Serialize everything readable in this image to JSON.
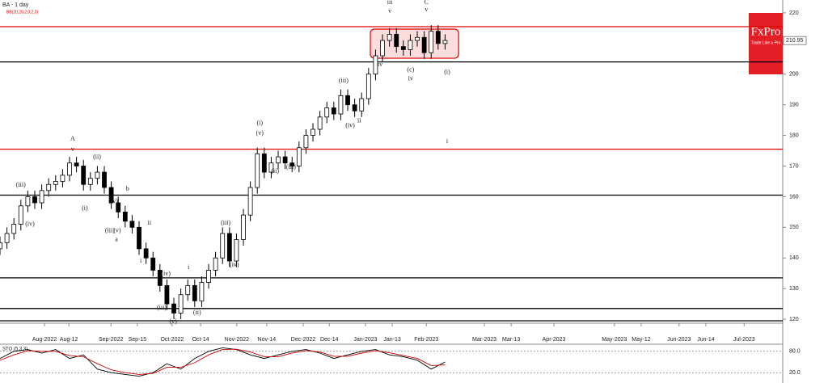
{
  "chart_data": {
    "type": "candlestick",
    "title": "BA - 1 day",
    "indicator": "BB(20,20,2,0,2,0)",
    "oscillator": "STO (5,3,3)",
    "brand": "FxPro",
    "tagline": "Trade Like a Pro",
    "last_price": 210.95,
    "x": [
      0,
      2,
      4,
      6,
      8,
      10,
      12,
      14,
      16,
      18,
      20,
      22,
      24,
      26,
      28,
      30,
      32,
      34,
      36,
      38,
      40,
      42,
      44,
      46,
      48,
      50,
      52,
      54,
      56,
      58,
      60,
      62,
      64,
      66,
      68,
      70,
      72,
      74,
      76,
      78,
      80,
      82,
      84,
      86,
      88,
      90,
      92,
      94,
      96,
      98,
      100,
      102,
      104,
      106,
      108,
      110,
      112,
      114,
      116,
      118,
      120,
      122,
      124,
      126,
      128
    ],
    "open": [
      143,
      145,
      148,
      151,
      157,
      160,
      158,
      162,
      164,
      165,
      167,
      171,
      170,
      164,
      166,
      168,
      163,
      158,
      155,
      152,
      150,
      143,
      140,
      136,
      131,
      125,
      122,
      128,
      131,
      126,
      132,
      136,
      140,
      148,
      139,
      146,
      154,
      163,
      174,
      168,
      171,
      173,
      171,
      170,
      176,
      180,
      182,
      186,
      189,
      187,
      193,
      190,
      188,
      192,
      200,
      206,
      211,
      213,
      209,
      208,
      211,
      212,
      207,
      214,
      210
    ],
    "high": [
      147,
      150,
      153,
      159,
      162,
      162,
      164,
      166,
      167,
      169,
      173,
      173,
      172,
      168,
      170,
      170,
      165,
      160,
      157,
      154,
      152,
      145,
      142,
      138,
      133,
      127,
      130,
      133,
      133,
      134,
      138,
      142,
      150,
      150,
      148,
      156,
      165,
      176,
      176,
      173,
      175,
      175,
      173,
      178,
      182,
      184,
      188,
      191,
      191,
      195,
      195,
      192,
      194,
      202,
      208,
      213,
      215,
      215,
      211,
      213,
      214,
      214,
      216,
      216,
      213
    ],
    "low": [
      141,
      143,
      146,
      149,
      155,
      156,
      156,
      160,
      162,
      163,
      165,
      168,
      162,
      162,
      164,
      161,
      156,
      153,
      150,
      148,
      141,
      138,
      134,
      129,
      123,
      120,
      120,
      126,
      124,
      124,
      130,
      134,
      138,
      137,
      137,
      144,
      152,
      161,
      166,
      166,
      169,
      169,
      168,
      168,
      174,
      178,
      180,
      184,
      185,
      185,
      188,
      186,
      186,
      190,
      198,
      204,
      209,
      207,
      206,
      206,
      209,
      205,
      205,
      208,
      208
    ],
    "close": [
      145,
      148,
      151,
      157,
      160,
      158,
      162,
      164,
      165,
      167,
      171,
      170,
      164,
      166,
      168,
      163,
      158,
      155,
      152,
      150,
      143,
      140,
      136,
      131,
      125,
      122,
      128,
      131,
      126,
      132,
      136,
      140,
      148,
      139,
      146,
      154,
      163,
      174,
      168,
      171,
      173,
      171,
      170,
      176,
      180,
      182,
      186,
      189,
      187,
      193,
      190,
      188,
      192,
      200,
      206,
      211,
      213,
      209,
      208,
      211,
      212,
      207,
      214,
      210,
      211
    ],
    "xlim": [
      0,
      225.1
    ],
    "ylim": [
      118.7,
      224.2
    ],
    "yticks": [
      120,
      130,
      140,
      150,
      160,
      170,
      180,
      190,
      200,
      210,
      220
    ],
    "xticks": [
      {
        "value": 12.8,
        "label": "Aug-2022"
      },
      {
        "value": 19.8,
        "label": "Aug-12"
      },
      {
        "value": 31.9,
        "label": "Sep-2022"
      },
      {
        "value": 39.5,
        "label": "Sep-15"
      },
      {
        "value": 49.5,
        "label": "Oct-2022"
      },
      {
        "value": 57.7,
        "label": "Oct-14"
      },
      {
        "value": 68.1,
        "label": "Nov-2022"
      },
      {
        "value": 76.7,
        "label": "Nov-14"
      },
      {
        "value": 87.2,
        "label": "Dec-2022"
      },
      {
        "value": 94.7,
        "label": "Dec-14"
      },
      {
        "value": 105.1,
        "label": "Jan-2023"
      },
      {
        "value": 112.8,
        "label": "Jan-13"
      },
      {
        "value": 122.6,
        "label": "Feb-2023"
      },
      {
        "value": 139.3,
        "label": "Mar-2023"
      },
      {
        "value": 147,
        "label": "Mar-13"
      },
      {
        "value": 159.3,
        "label": "Apr-2023"
      },
      {
        "value": 176.7,
        "label": "May-2023"
      },
      {
        "value": 184.4,
        "label": "May-12"
      },
      {
        "value": 195.3,
        "label": "Jun-2023"
      },
      {
        "value": 203,
        "label": "Jun-14"
      },
      {
        "value": 214,
        "label": "Jul-2023"
      }
    ],
    "levels": [
      {
        "value": 215.5,
        "color": "#e00000"
      },
      {
        "value": 204,
        "color": "#000000"
      },
      {
        "value": 175.5,
        "color": "#e00000"
      },
      {
        "value": 160.5,
        "color": "#000000"
      },
      {
        "value": 133.5,
        "color": "#000000"
      },
      {
        "value": 123.5,
        "color": "#000000"
      },
      {
        "value": 119.5,
        "color": "#000000"
      }
    ],
    "box": {
      "x": [
        106.5,
        131.9
      ],
      "y": [
        205.2,
        214.7
      ]
    },
    "annotations": [
      {
        "text": "A",
        "x": 20.9,
        "y": 178.8
      },
      {
        "text": "v",
        "x": 20.9,
        "y": 175.4
      },
      {
        "text": "C",
        "x": 122.6,
        "y": 223.4
      },
      {
        "text": "v",
        "x": 122.6,
        "y": 221
      },
      {
        "text": "iii",
        "x": 112.1,
        "y": 223.4
      },
      {
        "text": "v",
        "x": 112.1,
        "y": 220.5
      },
      {
        "text": "(c)",
        "x": 118.1,
        "y": 201.3
      },
      {
        "text": "iv",
        "x": 118.1,
        "y": 198.4
      },
      {
        "text": "iv",
        "x": 109.3,
        "y": 203.1
      },
      {
        "text": "(i)",
        "x": 128.6,
        "y": 200.5
      },
      {
        "text": "i",
        "x": 128.6,
        "y": 178
      },
      {
        "text": "(iii)",
        "x": 98.8,
        "y": 197.8
      },
      {
        "text": "(iv)",
        "x": 100.7,
        "y": 183.1
      },
      {
        "text": "ii",
        "x": 103.3,
        "y": 184.7
      },
      {
        "text": "(i)",
        "x": 74.7,
        "y": 183.9
      },
      {
        "text": "(v)",
        "x": 74.7,
        "y": 180.7
      },
      {
        "text": "(ii)",
        "x": 79.1,
        "y": 168.3
      },
      {
        "text": "(iii)",
        "x": 83.7,
        "y": 169.6
      },
      {
        "text": "(iii)",
        "x": 64.9,
        "y": 151.4
      },
      {
        "text": "(iv)",
        "x": 67.4,
        "y": 137.7
      },
      {
        "text": "i",
        "x": 54.2,
        "y": 136.9
      },
      {
        "text": "(ii)",
        "x": 56.7,
        "y": 122.1
      },
      {
        "text": "(iv)",
        "x": 47.7,
        "y": 134.8
      },
      {
        "text": "(iii)",
        "x": 46.5,
        "y": 123.7
      },
      {
        "text": "(v)",
        "x": 49.8,
        "y": 119.2
      },
      {
        "text": "(ii)",
        "x": 27.9,
        "y": 172.8
      },
      {
        "text": "(i)",
        "x": 24.4,
        "y": 156.1
      },
      {
        "text": "(iv)",
        "x": 32.6,
        "y": 158.5
      },
      {
        "text": "b",
        "x": 36.7,
        "y": 162.5
      },
      {
        "text": "(iii)",
        "x": 31.6,
        "y": 148.8
      },
      {
        "text": "(v)",
        "x": 33.7,
        "y": 148.8
      },
      {
        "text": "a",
        "x": 33.5,
        "y": 145.9
      },
      {
        "text": "ii",
        "x": 43,
        "y": 151.4
      },
      {
        "text": "i",
        "x": 40.5,
        "y": 139
      },
      {
        "text": "(iii)",
        "x": 6,
        "y": 163.8
      },
      {
        "text": "(iv)",
        "x": 8.6,
        "y": 150.9
      }
    ],
    "stoch": {
      "x": [
        0,
        4,
        8,
        12,
        16,
        20,
        24,
        28,
        32,
        36,
        40,
        44,
        48,
        52,
        56,
        60,
        64,
        68,
        72,
        76,
        80,
        84,
        88,
        92,
        96,
        100,
        104,
        108,
        112,
        116,
        120,
        124,
        128
      ],
      "k": [
        60,
        80,
        85,
        75,
        85,
        60,
        70,
        30,
        20,
        15,
        10,
        20,
        45,
        30,
        60,
        80,
        90,
        85,
        70,
        60,
        70,
        80,
        85,
        75,
        60,
        70,
        80,
        85,
        70,
        65,
        55,
        30,
        50
      ],
      "d": [
        55,
        70,
        82,
        80,
        80,
        68,
        65,
        45,
        28,
        20,
        15,
        18,
        35,
        35,
        48,
        70,
        85,
        86,
        78,
        65,
        65,
        75,
        82,
        78,
        66,
        66,
        75,
        82,
        76,
        68,
        60,
        40,
        42
      ],
      "ylim": [
        0,
        100
      ],
      "yticks": [
        {
          "value": 80,
          "label": "80.0"
        },
        {
          "value": 20,
          "label": "20.0"
        }
      ]
    }
  }
}
